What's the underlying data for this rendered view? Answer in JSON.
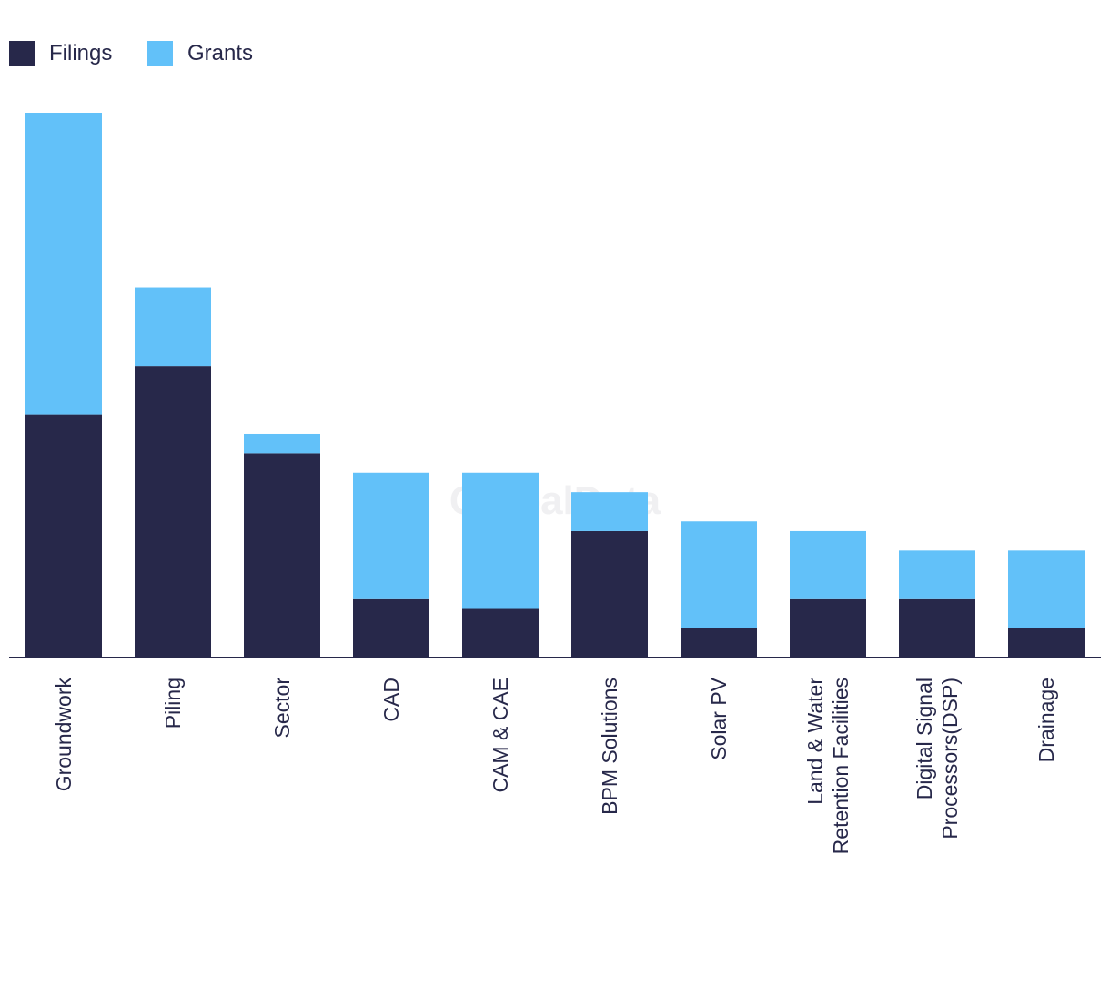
{
  "chart_data": {
    "type": "bar",
    "stacked": true,
    "title": "",
    "xlabel": "",
    "ylabel": "",
    "categories": [
      "Groundwork",
      "Piling",
      "Sector",
      "CAD",
      "CAM & CAE",
      "BPM Solutions",
      "Solar PV",
      "Land & Water Retention Facilities",
      "Digital Signal Processors(DSP)",
      "Drainage"
    ],
    "series": [
      {
        "name": "Filings",
        "color": "#27284a",
        "values": [
          25,
          30,
          21,
          6,
          5,
          13,
          3,
          6,
          6,
          3
        ]
      },
      {
        "name": "Grants",
        "color": "#62c1f9",
        "values": [
          31,
          8,
          2,
          13,
          14,
          4,
          11,
          7,
          5,
          8
        ]
      }
    ],
    "ylim": [
      0,
      56
    ],
    "grid": false,
    "legend": {
      "position": "top-left"
    },
    "y_axis_visible": false,
    "watermark": "GlobalData"
  }
}
